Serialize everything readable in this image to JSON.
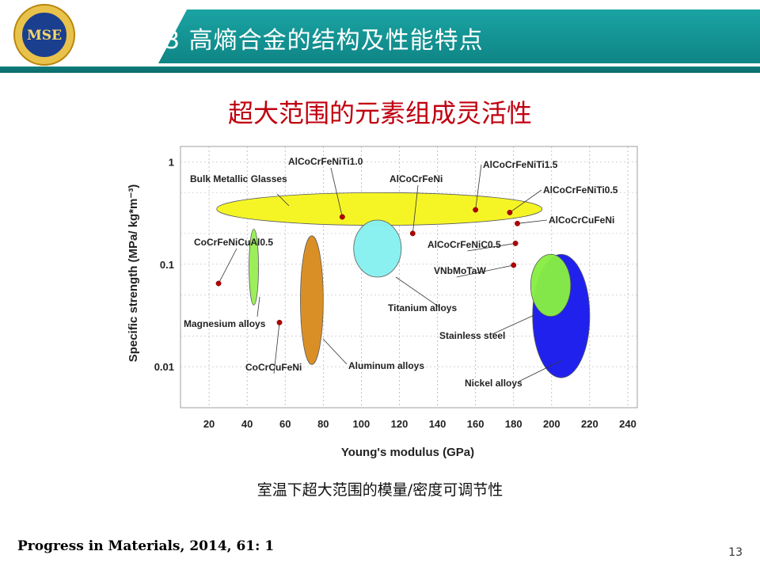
{
  "header": {
    "title": "3 高熵合金的结构及性能特点",
    "logo_text": "MSE",
    "band_color": "#1aa3a3"
  },
  "slide": {
    "subtitle": "超大范围的元素组成灵活性",
    "caption": "室温下超大范围的模量/密度可调节性",
    "reference": "Progress in Materials, 2014, 61: 1",
    "page_number": "13"
  },
  "chart_data": {
    "type": "scatter",
    "xlabel": "Young's modulus (GPa)",
    "ylabel": "Specific strength (MPa/ kg*m⁻³)",
    "xlim": [
      5,
      245
    ],
    "ylim_log10": [
      -2.4,
      0.15
    ],
    "x_ticks": [
      "20",
      "40",
      "60",
      "80",
      "100",
      "120",
      "140",
      "160",
      "180",
      "200",
      "220",
      "240"
    ],
    "y_ticks": [
      {
        "label": "1",
        "value": 1
      },
      {
        "label": "0.1",
        "value": 0.1
      },
      {
        "label": "0.01",
        "value": 0.01
      }
    ],
    "grid": true,
    "points": [
      {
        "name": "AlCoCrFeNiTi1.0",
        "x": 90,
        "y": 0.29
      },
      {
        "name": "AlCoCrFeNi",
        "x": 127,
        "y": 0.2
      },
      {
        "name": "AlCoCrFeNiTi1.5",
        "x": 160,
        "y": 0.34
      },
      {
        "name": "AlCoCrFeNiTi0.5",
        "x": 178,
        "y": 0.32
      },
      {
        "name": "AlCoCrCuFeNi",
        "x": 182,
        "y": 0.25
      },
      {
        "name": "AlCoCrFeNiC0.5",
        "x": 181,
        "y": 0.16
      },
      {
        "name": "VNbMoTaW",
        "x": 180,
        "y": 0.098
      },
      {
        "name": "CoCrFeNiCuAl0.5",
        "x": 25,
        "y": 0.065
      },
      {
        "name": "CoCrCuFeNi",
        "x": 57,
        "y": 0.027
      }
    ],
    "regions": [
      {
        "name": "Bulk Metallic Glasses",
        "color": "#f5f520",
        "x_range": [
          24,
          195
        ],
        "y_range": [
          0.24,
          0.5
        ]
      },
      {
        "name": "Magnesium alloys",
        "color": "#99ee55",
        "x_range": [
          41,
          46
        ],
        "y_range": [
          0.04,
          0.22
        ]
      },
      {
        "name": "Aluminum alloys",
        "color": "#d98c20",
        "x_range": [
          68,
          80
        ],
        "y_range": [
          0.0105,
          0.19
        ]
      },
      {
        "name": "Titanium alloys",
        "color": "#88f0f0",
        "x_range": [
          96,
          121
        ],
        "y_range": [
          0.075,
          0.27
        ]
      },
      {
        "name": "Nickel alloys",
        "color": "#1a1aee",
        "x_range": [
          190,
          220
        ],
        "y_range": [
          0.0078,
          0.125
        ]
      },
      {
        "name": "Stainless steel",
        "color": "#88ee44",
        "x_range": [
          189,
          210
        ],
        "y_range": [
          0.031,
          0.125
        ]
      }
    ]
  }
}
